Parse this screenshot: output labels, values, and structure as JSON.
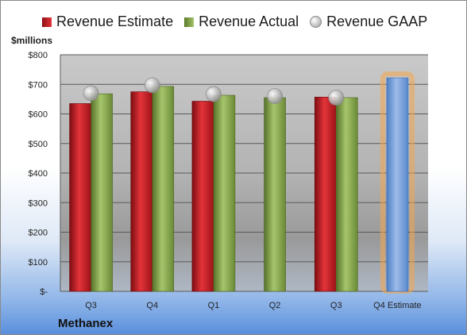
{
  "legend": {
    "estimate": "Revenue Estimate",
    "actual": "Revenue Actual",
    "gaap": "Revenue GAAP"
  },
  "colors": {
    "estimate": "#c8161c",
    "actual": "#8fb050",
    "gaap": "#bfbfbf",
    "forecast": "#6d9bd9",
    "forecast_glow": "#f5a54a"
  },
  "footer": {
    "company": "Methanex"
  },
  "chart_data": {
    "type": "bar",
    "title": "",
    "ylabel": "$millions",
    "xlabel": "",
    "ylim": [
      0,
      800
    ],
    "yticks": [
      0,
      100,
      200,
      300,
      400,
      500,
      600,
      700,
      800
    ],
    "ytick_labels": [
      "$-",
      "$100",
      "$200",
      "$300",
      "$400",
      "$500",
      "$600",
      "$700",
      "$800"
    ],
    "categories": [
      "Q3",
      "Q4",
      "Q1",
      "Q2",
      "Q3",
      "Q4 Estimate"
    ],
    "series": [
      {
        "name": "Revenue Estimate",
        "values": [
          635,
          675,
          643,
          null,
          657,
          722
        ]
      },
      {
        "name": "Revenue Actual",
        "values": [
          668,
          693,
          663,
          655,
          655,
          null
        ]
      },
      {
        "name": "Revenue GAAP",
        "values": [
          670,
          697,
          667,
          660,
          655,
          null
        ]
      }
    ],
    "legend_position": "top",
    "grid": true
  }
}
